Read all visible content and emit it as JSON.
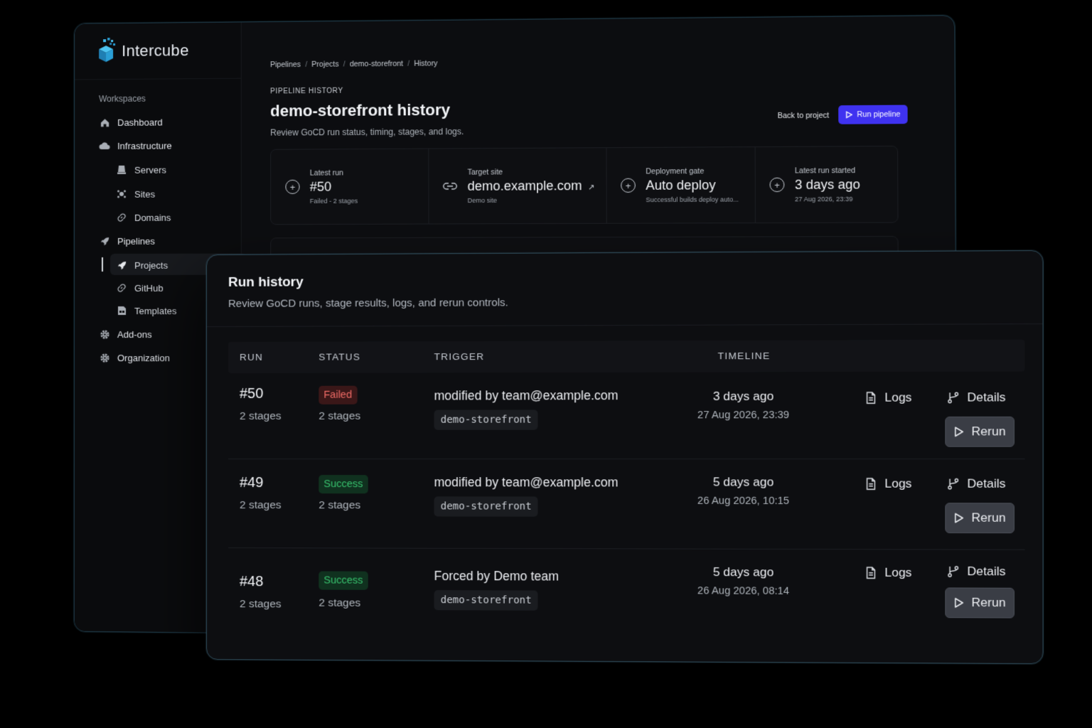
{
  "brand": {
    "name": "Intercube"
  },
  "sidebar": {
    "section_label": "Workspaces",
    "items": [
      {
        "label": "Dashboard",
        "icon": "home-icon"
      },
      {
        "label": "Infrastructure",
        "icon": "cloud-icon"
      },
      {
        "label": "Servers",
        "icon": "server-icon"
      },
      {
        "label": "Sites",
        "icon": "sites-icon"
      },
      {
        "label": "Domains",
        "icon": "link-icon"
      },
      {
        "label": "Pipelines",
        "icon": "rocket-icon"
      },
      {
        "label": "Projects",
        "icon": "rocket-icon",
        "active": true
      },
      {
        "label": "GitHub",
        "icon": "link-icon"
      },
      {
        "label": "Templates",
        "icon": "template-icon"
      },
      {
        "label": "Add-ons",
        "icon": "gear-icon"
      },
      {
        "label": "Organization",
        "icon": "gear-icon"
      }
    ]
  },
  "breadcrumb": [
    "Pipelines",
    "Projects",
    "demo-storefront",
    "History"
  ],
  "header": {
    "eyebrow": "PIPELINE HISTORY",
    "title": "demo-storefront history",
    "subtitle": "Review GoCD run status, timing, stages, and logs.",
    "back_label": "Back to project",
    "run_label": "Run pipeline"
  },
  "stats": [
    {
      "label": "Latest run",
      "value": "#50",
      "note": "Failed - 2 stages"
    },
    {
      "label": "Target site",
      "value": "demo.example.com",
      "note": "Demo site"
    },
    {
      "label": "Deployment gate",
      "value": "Auto deploy",
      "note": "Successful builds deploy auto..."
    },
    {
      "label": "Latest run started",
      "value": "3 days ago",
      "note": "27 Aug 2026, 23:39"
    }
  ],
  "run_history": {
    "title": "Run history",
    "subtitle": "Review GoCD runs, stage results, logs, and rerun controls.",
    "columns": [
      "RUN",
      "STATUS",
      "TRIGGER",
      "TIMELINE"
    ],
    "actions": {
      "logs": "Logs",
      "details": "Details",
      "rerun": "Rerun"
    },
    "rows": [
      {
        "run": "#50",
        "run_stages": "2 stages",
        "status": "Failed",
        "status_stages": "2 stages",
        "trigger": "modified by team@example.com",
        "pipeline": "demo-storefront",
        "relative": "3 days ago",
        "absolute": "27 Aug 2026, 23:39"
      },
      {
        "run": "#49",
        "run_stages": "2 stages",
        "status": "Success",
        "status_stages": "2 stages",
        "trigger": "modified by team@example.com",
        "pipeline": "demo-storefront",
        "relative": "5 days ago",
        "absolute": "26 Aug 2026, 10:15"
      },
      {
        "run": "#48",
        "run_stages": "2 stages",
        "status": "Success",
        "status_stages": "2 stages",
        "trigger": "Forced by Demo team",
        "pipeline": "demo-storefront",
        "relative": "5 days ago",
        "absolute": "26 Aug 2026, 08:14"
      }
    ]
  },
  "colors": {
    "accent": "#3f32f0",
    "failed": "#f06b66",
    "success": "#37c16d",
    "logo": "#29a8e0"
  }
}
